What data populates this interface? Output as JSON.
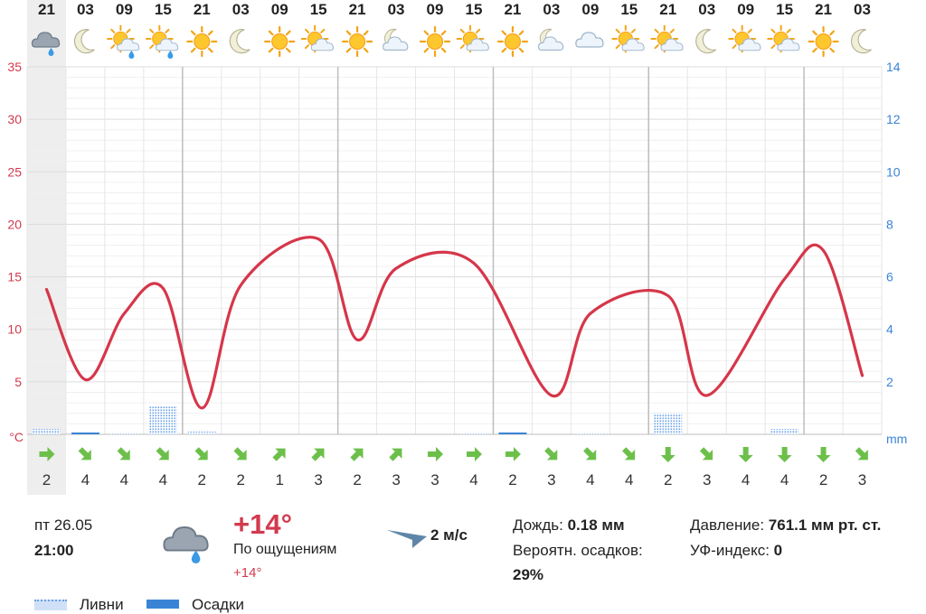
{
  "chart_data": {
    "type": "line",
    "hours": [
      "21",
      "03",
      "09",
      "15",
      "21",
      "03",
      "09",
      "15",
      "21",
      "03",
      "09",
      "15",
      "21",
      "03",
      "09",
      "15",
      "21",
      "03",
      "09",
      "15",
      "21",
      "03"
    ],
    "weather_icons": [
      "cloud-rain-icon",
      "moon-icon",
      "sun-cloud-rain-icon",
      "sun-cloud-rain-icon",
      "sun-icon",
      "moon-icon",
      "sun-icon",
      "sun-cloud-icon",
      "sun-icon",
      "moon-cloud-icon",
      "sun-icon",
      "sun-cloud-icon",
      "sun-icon",
      "moon-cloud-icon",
      "cloud-icon",
      "sun-cloud-icon",
      "sun-cloud-icon",
      "moon-icon",
      "sun-cloud-icon",
      "sun-cloud-icon",
      "sun-icon",
      "moon-icon"
    ],
    "temperature": [
      13.8,
      5.2,
      11.5,
      13.9,
      2.5,
      14.2,
      18.6,
      9.0,
      15.8,
      16.3,
      3.7,
      11.5,
      13.2,
      3.7,
      14.8,
      17.5,
      5.6
    ],
    "temperature_x": [
      0,
      1,
      2,
      3,
      4,
      5,
      7,
      8,
      9,
      11,
      13,
      14,
      16,
      17,
      19,
      20,
      21
    ],
    "temp_axis": {
      "unit": "°C",
      "min": 0,
      "max": 35,
      "ticks": [
        5,
        10,
        15,
        20,
        25,
        30,
        35
      ]
    },
    "precip_axis": {
      "unit": "mm",
      "min": 0,
      "max": 14,
      "ticks": [
        2,
        4,
        6,
        8,
        10,
        12,
        14
      ]
    },
    "showers_mm": [
      0.2,
      0.05,
      0.05,
      1.1,
      0.1,
      0,
      0,
      0,
      0,
      0,
      0,
      0.05,
      0,
      0,
      0.05,
      0,
      0.8,
      0,
      0,
      0.2,
      0,
      0
    ],
    "precip_mm": [
      0,
      0.05,
      0,
      0,
      0,
      0,
      0,
      0,
      0,
      0,
      0,
      0,
      0.05,
      0,
      0,
      0,
      0,
      0,
      0,
      0,
      0,
      0
    ],
    "wind_dir_deg": [
      90,
      135,
      135,
      135,
      135,
      135,
      45,
      45,
      45,
      45,
      90,
      90,
      90,
      135,
      135,
      135,
      180,
      135,
      180,
      180,
      180,
      135
    ],
    "wind_speed": [
      "2",
      "4",
      "4",
      "4",
      "2",
      "2",
      "1",
      "3",
      "2",
      "3",
      "3",
      "4",
      "2",
      "3",
      "4",
      "4",
      "2",
      "3",
      "4",
      "4",
      "2",
      "3"
    ],
    "selected_index": 0,
    "day_boundaries": [
      4,
      8,
      12,
      16,
      20
    ],
    "colors": {
      "temp_line": "#d6364a",
      "temp_axis": "#d23a4e",
      "precip_axis": "#3a84d6",
      "showers": "#6aa0e6",
      "precip": "#3a84d6",
      "wind_arrow": "#6cc04a",
      "grid": "#e6e6e6",
      "day_line": "#bdbdbd",
      "selected_bg": "#eeeeee"
    }
  },
  "details": {
    "date": "пт 26.05",
    "time": "21:00",
    "icon": "cloud-rain-icon",
    "temperature": "+14°",
    "feels_label": "По ощущениям",
    "feels_value": "+14°",
    "wind_speed": "2 м/с",
    "rain_label": "Дождь:",
    "rain_value": "0.18 мм",
    "prob_label": "Вероятн. осадков:",
    "prob_value": "29%",
    "pressure_label": "Давление:",
    "pressure_value": "761.1 мм рт. ст.",
    "uv_label": "УФ-индекс:",
    "uv_value": "0"
  },
  "legend": {
    "showers": "Ливни",
    "precip": "Осадки"
  }
}
